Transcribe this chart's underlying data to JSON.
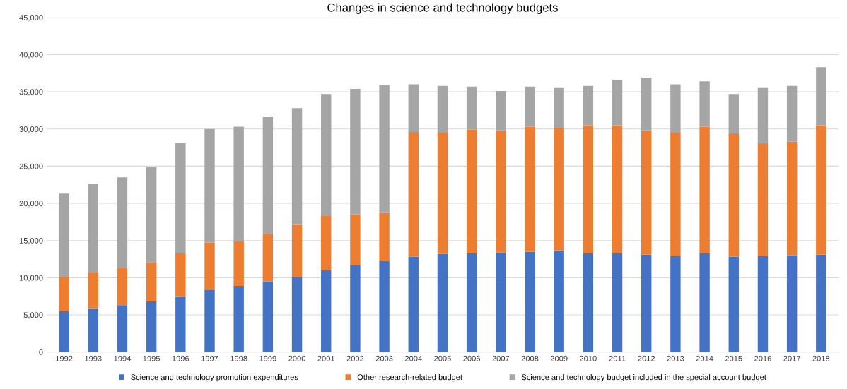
{
  "chart_data": {
    "type": "bar",
    "title": "Changes in science and technology budgets",
    "stacked": true,
    "categories": [
      "1992",
      "1993",
      "1994",
      "1995",
      "1996",
      "1997",
      "1998",
      "1999",
      "2000",
      "2001",
      "2002",
      "2003",
      "2004",
      "2005",
      "2006",
      "2007",
      "2008",
      "2009",
      "2010",
      "2011",
      "2012",
      "2013",
      "2014",
      "2015",
      "2016",
      "2017",
      "2018"
    ],
    "series": [
      {
        "name": "Science and technology promotion expenditures",
        "color": "#4472c4",
        "values": [
          5500,
          5900,
          6300,
          6800,
          7500,
          8400,
          8900,
          9500,
          10100,
          11000,
          11700,
          12300,
          12800,
          13200,
          13300,
          13400,
          13500,
          13700,
          13300,
          13300,
          13100,
          12900,
          13300,
          12800,
          12900,
          13000,
          13100
        ]
      },
      {
        "name": "Other research-related budget",
        "color": "#ed7d31",
        "values": [
          4600,
          4800,
          5000,
          5300,
          5800,
          6300,
          6000,
          6400,
          7100,
          7300,
          6800,
          6500,
          16800,
          16300,
          16600,
          16400,
          16800,
          16400,
          17200,
          17200,
          16700,
          16600,
          17000,
          16600,
          15200,
          15300,
          17400
        ]
      },
      {
        "name": "Science and technology budget included in the special account budget",
        "color": "#a5a5a5",
        "values": [
          11200,
          11900,
          12200,
          12800,
          14800,
          15300,
          15400,
          15700,
          15600,
          16400,
          16900,
          17100,
          6400,
          6300,
          5800,
          5300,
          5400,
          5500,
          5300,
          6100,
          7100,
          6500,
          6100,
          5300,
          7500,
          7500,
          7800
        ]
      }
    ],
    "ylim": [
      0,
      45000
    ],
    "yticks": [
      {
        "value": 0,
        "label": "0"
      },
      {
        "value": 5000,
        "label": "5,000"
      },
      {
        "value": 10000,
        "label": "10,000"
      },
      {
        "value": 15000,
        "label": "15,000"
      },
      {
        "value": 20000,
        "label": "20,000"
      },
      {
        "value": 25000,
        "label": "25,000"
      },
      {
        "value": 30000,
        "label": "30,000"
      },
      {
        "value": 35000,
        "label": "35,000"
      },
      {
        "value": 40000,
        "label": "40,000"
      },
      {
        "value": 45000,
        "label": "45,000"
      }
    ],
    "grid": "y",
    "legend": "bottom"
  }
}
